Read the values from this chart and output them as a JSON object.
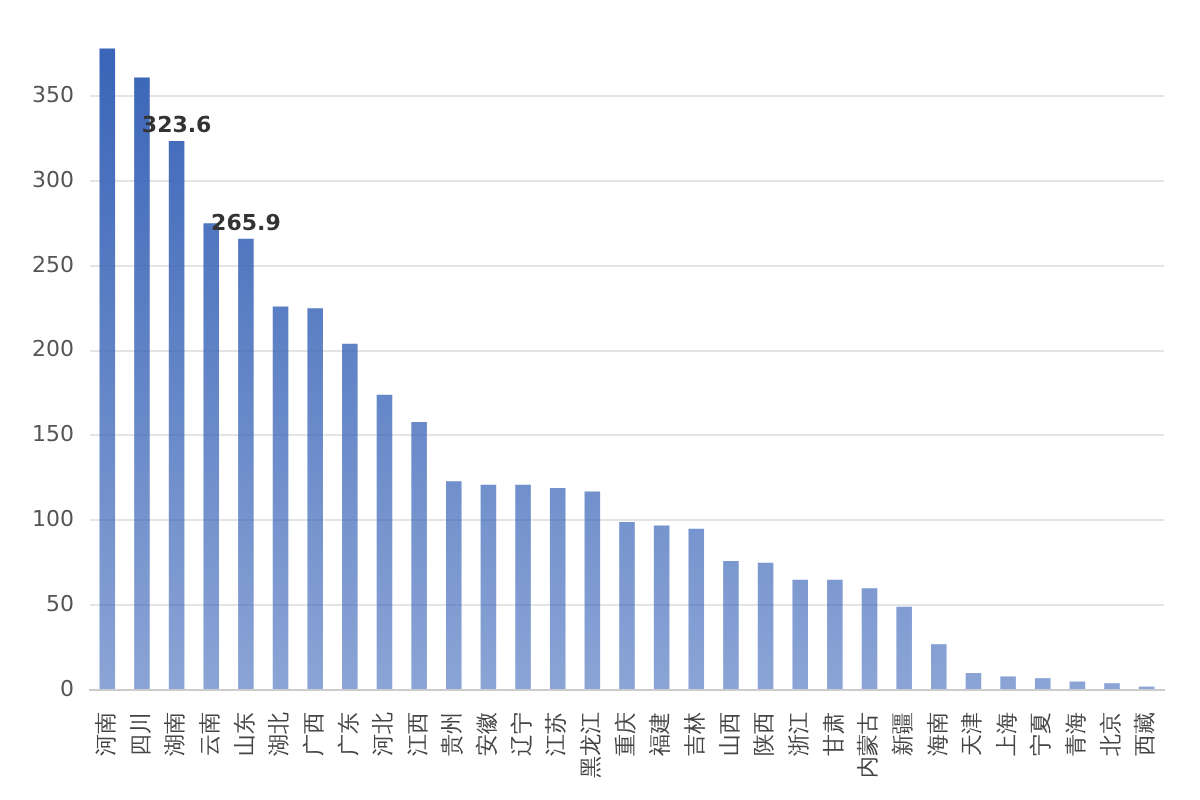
{
  "chart_data": {
    "type": "bar",
    "categories": [
      "河南",
      "四川",
      "湖南",
      "云南",
      "山东",
      "湖北",
      "广西",
      "广东",
      "河北",
      "江西",
      "贵州",
      "安徽",
      "辽宁",
      "江苏",
      "黑龙江",
      "重庆",
      "福建",
      "吉林",
      "山西",
      "陕西",
      "浙江",
      "甘肃",
      "内蒙古",
      "新疆",
      "海南",
      "天津",
      "上海",
      "宁夏",
      "青海",
      "北京",
      "西藏"
    ],
    "values": [
      378,
      361,
      323.6,
      275,
      265.9,
      226,
      225,
      204,
      174,
      158,
      123,
      121,
      121,
      119,
      117,
      99,
      97,
      95,
      76,
      75,
      65,
      65,
      60,
      49,
      27,
      10,
      8,
      7,
      5,
      4,
      2
    ],
    "value_labels": [
      null,
      null,
      "323.6",
      null,
      "265.9",
      null,
      null,
      null,
      null,
      null,
      null,
      null,
      null,
      null,
      null,
      null,
      null,
      null,
      null,
      null,
      null,
      null,
      null,
      null,
      null,
      null,
      null,
      null,
      null,
      null,
      null
    ],
    "color": "#3a65b8",
    "ylim": [
      0,
      380
    ],
    "yticks": [
      0,
      50,
      100,
      150,
      200,
      250,
      300,
      350
    ],
    "grid": "y",
    "legend": false
  }
}
